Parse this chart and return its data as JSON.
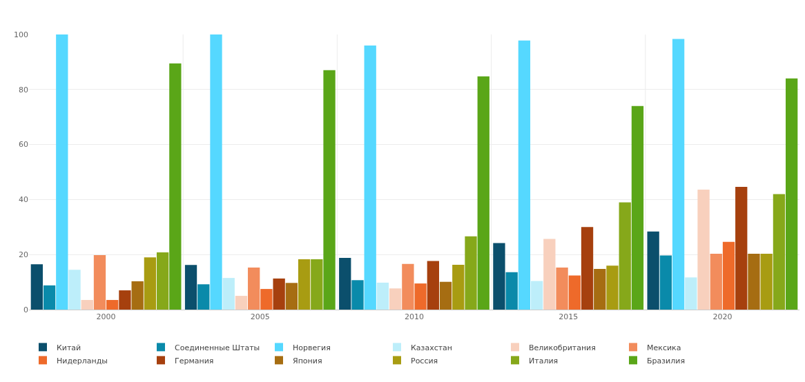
{
  "chart_data": {
    "type": "bar",
    "categories": [
      "2000",
      "2005",
      "2010",
      "2015",
      "2020"
    ],
    "series": [
      {
        "name": "Китай",
        "color": "#0b4f6c",
        "values": [
          16.5,
          16.2,
          18.8,
          24.2,
          28.4
        ]
      },
      {
        "name": "Соединенные Штаты",
        "color": "#0a8aaa",
        "values": [
          8.8,
          9.2,
          10.7,
          13.6,
          19.7
        ]
      },
      {
        "name": "Норвегия",
        "color": "#55d8ff",
        "values": [
          100,
          100,
          96,
          97.8,
          98.4
        ]
      },
      {
        "name": "Казахстан",
        "color": "#bdeefa",
        "values": [
          14.5,
          11.5,
          9.8,
          10.4,
          11.7
        ]
      },
      {
        "name": "Великобритания",
        "color": "#f8d0bd",
        "values": [
          3.5,
          5,
          7.7,
          25.7,
          43.6
        ]
      },
      {
        "name": "Мексика",
        "color": "#f28c5c",
        "values": [
          19.8,
          15.3,
          16.6,
          15.3,
          20.3
        ]
      },
      {
        "name": "Нидерланды",
        "color": "#ee6a2a",
        "values": [
          3.5,
          7.5,
          9.5,
          12.4,
          24.6
        ]
      },
      {
        "name": "Германия",
        "color": "#a6400e",
        "values": [
          7,
          11.3,
          17.7,
          30,
          44.6
        ]
      },
      {
        "name": "Япония",
        "color": "#a66d12",
        "values": [
          10.3,
          9.7,
          10.1,
          14.8,
          20.3
        ]
      },
      {
        "name": "Россия",
        "color": "#a89c12",
        "values": [
          19,
          18.3,
          16.3,
          16,
          20.3
        ]
      },
      {
        "name": "Италия",
        "color": "#86a81a",
        "values": [
          20.8,
          18.3,
          26.6,
          39,
          42
        ]
      },
      {
        "name": "Бразилия",
        "color": "#5aa618",
        "values": [
          89.5,
          87,
          84.8,
          74,
          84
        ]
      }
    ],
    "ylim": [
      0,
      100
    ],
    "yticks": [
      0,
      20,
      40,
      60,
      80,
      100
    ],
    "grid": true,
    "legend": "bottom"
  }
}
